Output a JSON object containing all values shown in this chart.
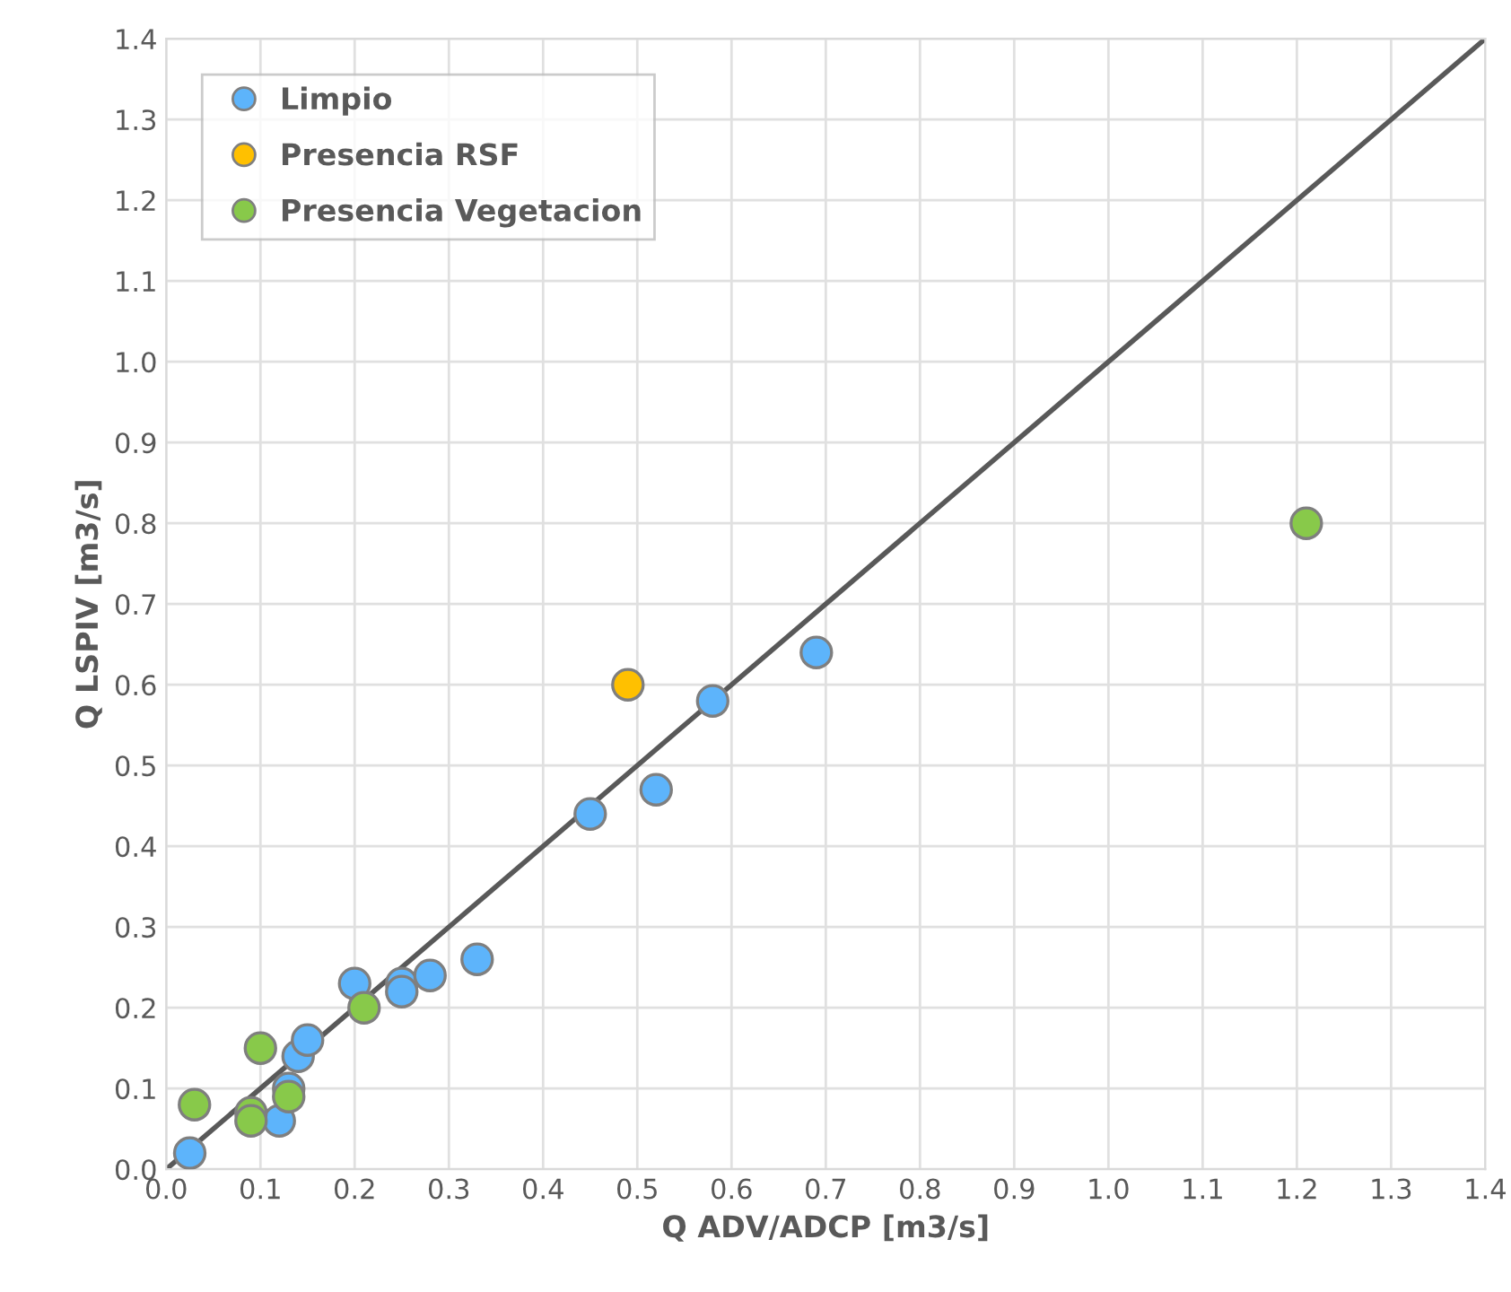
{
  "chart_data": {
    "type": "scatter",
    "xlabel": "Q ADV/ADCP [m3/s]",
    "ylabel": "Q LSPIV [m3/s]",
    "xlim": [
      0.0,
      1.4
    ],
    "ylim": [
      0.0,
      1.4
    ],
    "xticks": [
      {
        "value": 0,
        "label": "0.0"
      },
      0.1,
      0.2,
      0.3,
      0.4,
      0.5,
      0.6,
      0.7,
      0.8,
      0.9,
      {
        "value": 1,
        "label": "1.0"
      },
      1.1,
      1.2,
      1.3,
      1.4
    ],
    "yticks": [
      {
        "value": 0,
        "label": "0.0"
      },
      0.1,
      0.2,
      0.3,
      0.4,
      0.5,
      0.6,
      0.7,
      0.8,
      0.9,
      {
        "value": 1,
        "label": "1.0"
      },
      1.1,
      1.2,
      1.3,
      1.4
    ],
    "grid": true,
    "legend": "top left",
    "marker": "circle",
    "series": [
      {
        "type": "line",
        "marker": "none",
        "color": "#595959",
        "x": [
          0.0,
          1.4
        ],
        "values": [
          0.0,
          1.4
        ]
      },
      {
        "name": "Limpio",
        "color": "#5db4fb",
        "x": [
          0.025,
          0.12,
          0.13,
          0.14,
          0.15,
          0.2,
          0.25,
          0.25,
          0.28,
          0.33,
          0.45,
          0.52,
          0.58,
          0.69
        ],
        "values": [
          0.02,
          0.06,
          0.1,
          0.14,
          0.16,
          0.23,
          0.23,
          0.22,
          0.24,
          0.26,
          0.44,
          0.47,
          0.58,
          0.64
        ]
      },
      {
        "name": "Presencia RSF",
        "color": "#ffc000",
        "x": [
          0.49
        ],
        "values": [
          0.6
        ]
      },
      {
        "name": "Presencia Vegetacion",
        "color": "#88c94a",
        "x": [
          0.03,
          0.09,
          0.09,
          0.1,
          0.13,
          0.21,
          1.21
        ],
        "values": [
          0.08,
          0.07,
          0.06,
          0.15,
          0.09,
          0.2,
          0.8
        ]
      }
    ]
  }
}
